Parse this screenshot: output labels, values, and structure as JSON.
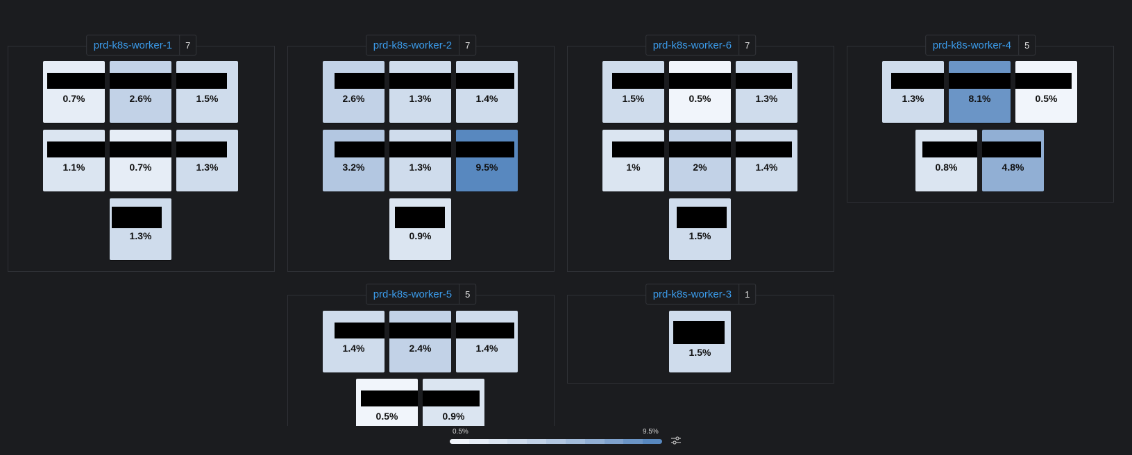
{
  "groups": [
    {
      "name": "prd-k8s-worker-1",
      "count": "7",
      "values": [
        "0.7%",
        "2.6%",
        "1.5%",
        "1.1%",
        "0.7%",
        "1.3%",
        "1.3%"
      ]
    },
    {
      "name": "prd-k8s-worker-2",
      "count": "7",
      "values": [
        "2.6%",
        "1.3%",
        "1.4%",
        "3.2%",
        "1.3%",
        "9.5%",
        "0.9%"
      ]
    },
    {
      "name": "prd-k8s-worker-6",
      "count": "7",
      "values": [
        "1.5%",
        "0.5%",
        "1.3%",
        "1%",
        "2%",
        "1.4%",
        "1.5%"
      ]
    },
    {
      "name": "prd-k8s-worker-4",
      "count": "5",
      "values": [
        "1.3%",
        "8.1%",
        "0.5%",
        "0.8%",
        "4.8%"
      ]
    },
    {
      "name": "prd-k8s-worker-5",
      "count": "5",
      "values": [
        "1.4%",
        "2.4%",
        "1.4%",
        "0.5%",
        "0.9%"
      ]
    },
    {
      "name": "prd-k8s-worker-3",
      "count": "1",
      "values": [
        "1.5%"
      ]
    }
  ],
  "legend": {
    "min_label": "0.5%",
    "max_label": "9.5%",
    "colors": [
      "#f1f5fb",
      "#e6edf6",
      "#dbe5f1",
      "#cfdcec",
      "#c2d2e7",
      "#b3c7e1",
      "#a3bcdb",
      "#91afd4",
      "#7fa2cd",
      "#6b95c6",
      "#5888bf"
    ]
  },
  "icons": {
    "legend_settings": "sliders-icon"
  }
}
